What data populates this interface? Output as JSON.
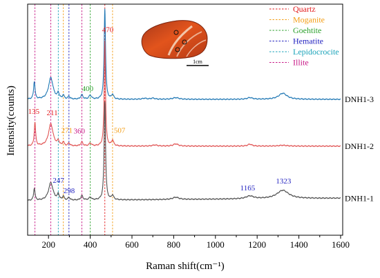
{
  "chart_data": {
    "type": "line",
    "xlabel": "Raman shift(cm⁻¹)",
    "ylabel": "Intensity(counts)",
    "xlim": [
      100,
      1610
    ],
    "x_ticks": [
      200,
      400,
      600,
      800,
      1000,
      1200,
      1400,
      1600
    ],
    "grid": false,
    "legend_position": "top-right",
    "legend": [
      {
        "name": "Quartz",
        "color": "#e31a1c",
        "x": 470
      },
      {
        "name": "Moganite",
        "color": "#f39c12",
        "x": 507
      },
      {
        "name": "Goehtite",
        "color": "#2ca02c",
        "x": 400
      },
      {
        "name": "Hematite",
        "color": "#1f1fbf",
        "x": 298
      },
      {
        "name": "Lepidocrocite",
        "color": "#17a2b8",
        "x": 247
      },
      {
        "name": "Illite",
        "color": "#c71585",
        "x": 135
      }
    ],
    "extra_ref_lines": [
      {
        "x": 211,
        "color": "#c71585"
      },
      {
        "x": 271,
        "color": "#f39c12"
      },
      {
        "x": 360,
        "color": "#c71585"
      }
    ],
    "series": [
      {
        "name": "DNH1-3",
        "color": "#1f77b4",
        "baseline": 0.84,
        "slope": 0.0,
        "peaks": [
          [
            132,
            4,
            0.32
          ],
          [
            211,
            13,
            0.39
          ],
          [
            247,
            5,
            0.1
          ],
          [
            271,
            4,
            0.07
          ],
          [
            298,
            5,
            0.05
          ],
          [
            360,
            6,
            0.08
          ],
          [
            400,
            7,
            0.07
          ],
          [
            470,
            4,
            1.63
          ],
          [
            507,
            6,
            0.08
          ],
          [
            660,
            12,
            0.018
          ],
          [
            700,
            12,
            0.02
          ],
          [
            810,
            18,
            0.03
          ],
          [
            1165,
            15,
            0.03
          ],
          [
            1323,
            24,
            0.11
          ]
        ]
      },
      {
        "name": "DNH1-2",
        "color": "#e05252",
        "baseline": 0.0,
        "slope": 0.0,
        "peaks": [
          [
            135,
            4,
            0.42
          ],
          [
            211,
            13,
            0.4
          ],
          [
            247,
            5,
            0.08
          ],
          [
            271,
            4,
            0.07
          ],
          [
            298,
            5,
            0.05
          ],
          [
            360,
            6,
            0.07
          ],
          [
            400,
            7,
            0.05
          ],
          [
            470,
            3.6,
            1.9
          ],
          [
            507,
            6,
            0.1
          ],
          [
            710,
            14,
            0.02
          ],
          [
            810,
            14,
            0.04
          ],
          [
            1165,
            12,
            0.035
          ],
          [
            1323,
            24,
            0.015
          ]
        ]
      },
      {
        "name": "DNH1-1",
        "color": "#4d4d4d",
        "baseline": -0.98,
        "slope": 3e-05,
        "peaks": [
          [
            132,
            4,
            0.22
          ],
          [
            211,
            13,
            0.32
          ],
          [
            247,
            5,
            0.1
          ],
          [
            271,
            4,
            0.07
          ],
          [
            298,
            5,
            0.05
          ],
          [
            360,
            6,
            0.08
          ],
          [
            400,
            7,
            0.05
          ],
          [
            470,
            4,
            1.77
          ],
          [
            507,
            6,
            0.08
          ],
          [
            810,
            18,
            0.04
          ],
          [
            1165,
            22,
            0.05
          ],
          [
            1323,
            34,
            0.15
          ]
        ]
      }
    ],
    "annotations": [
      {
        "text": "135",
        "x": 135,
        "series": 1,
        "color": "#e31a1c"
      },
      {
        "text": "211",
        "x": 211,
        "series": 1,
        "color": "#e31a1c"
      },
      {
        "text": "271",
        "x": 271,
        "series": 1,
        "color": "#f39c12"
      },
      {
        "text": "360",
        "x": 360,
        "series": 1,
        "color": "#c71585"
      },
      {
        "text": "470",
        "x": 470,
        "series": 1,
        "color": "#e31a1c"
      },
      {
        "text": "507",
        "x": 507,
        "series": 1,
        "color": "#f39c12"
      },
      {
        "text": "400",
        "x": 400,
        "series": 0,
        "color": "#2ca02c"
      },
      {
        "text": "247",
        "x": 247,
        "series": 2,
        "color": "#1f1fbf"
      },
      {
        "text": "298",
        "x": 298,
        "series": 2,
        "color": "#1f1fbf"
      },
      {
        "text": "1165",
        "x": 1165,
        "series": 2,
        "color": "#1f1fbf"
      },
      {
        "text": "1323",
        "x": 1323,
        "series": 2,
        "color": "#1f1fbf"
      }
    ],
    "inset": {
      "scale_label": "1cm"
    }
  }
}
